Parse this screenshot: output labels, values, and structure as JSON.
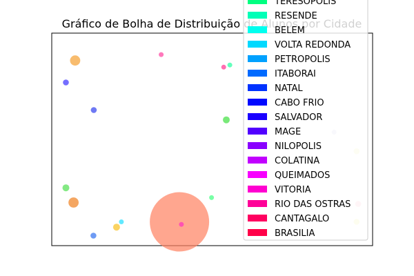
{
  "chart_data": {
    "type": "scatter",
    "title": "Gráfico de Bolha de Distribuição de Alunos por Cidade",
    "xlabel": "",
    "ylabel": "",
    "axes_ticks": "none",
    "grid": false,
    "legend_placement": "top-right",
    "legend": [
      {
        "name": "TERESOPOLIS",
        "color": "#00ff80"
      },
      {
        "name": "RESENDE",
        "color": "#00ffb7"
      },
      {
        "name": "BELEM",
        "color": "#00ffef"
      },
      {
        "name": "VOLTA REDONDA",
        "color": "#00d9ff"
      },
      {
        "name": "PETROPOLIS",
        "color": "#00a1ff"
      },
      {
        "name": "ITABORAI",
        "color": "#006aff"
      },
      {
        "name": "NATAL",
        "color": "#0032ff"
      },
      {
        "name": "CABO FRIO",
        "color": "#0008ff"
      },
      {
        "name": "SALVADOR",
        "color": "#1a00ff"
      },
      {
        "name": "MAGE",
        "color": "#5100ff"
      },
      {
        "name": "NILOPOLIS",
        "color": "#8900ff"
      },
      {
        "name": "COLATINA",
        "color": "#c100ff"
      },
      {
        "name": "QUEIMADOS",
        "color": "#f800ff"
      },
      {
        "name": "VITORIA",
        "color": "#ff00d0"
      },
      {
        "name": "RIO DAS OSTRAS",
        "color": "#ff0098"
      },
      {
        "name": "CANTAGALO",
        "color": "#ff0060"
      },
      {
        "name": "BRASILIA",
        "color": "#ff0048"
      }
    ],
    "points": [
      {
        "x": 0.398,
        "y": 0.112,
        "size": 300,
        "color": "#ff8060"
      },
      {
        "x": 0.073,
        "y": 0.871,
        "size": 9,
        "color": "#f5a030"
      },
      {
        "x": 0.068,
        "y": 0.203,
        "size": 9,
        "color": "#f08020"
      },
      {
        "x": 0.044,
        "y": 0.768,
        "size": 3,
        "color": "#3a30ff"
      },
      {
        "x": 0.131,
        "y": 0.638,
        "size": 3,
        "color": "#3040f0"
      },
      {
        "x": 0.341,
        "y": 0.899,
        "size": 2,
        "color": "#ff40a0"
      },
      {
        "x": 0.536,
        "y": 0.84,
        "size": 2,
        "color": "#ff3090"
      },
      {
        "x": 0.555,
        "y": 0.85,
        "size": 2,
        "color": "#20ffa0"
      },
      {
        "x": 0.544,
        "y": 0.592,
        "size": 4,
        "color": "#40e040"
      },
      {
        "x": 0.88,
        "y": 0.534,
        "size": 2,
        "color": "#c8c8e8"
      },
      {
        "x": 0.95,
        "y": 0.444,
        "size": 3,
        "color": "#f0f0a0"
      },
      {
        "x": 0.044,
        "y": 0.272,
        "size": 4,
        "color": "#50e050"
      },
      {
        "x": 0.498,
        "y": 0.226,
        "size": 2,
        "color": "#40ff80"
      },
      {
        "x": 0.217,
        "y": 0.112,
        "size": 2,
        "color": "#20e0ff"
      },
      {
        "x": 0.202,
        "y": 0.087,
        "size": 4,
        "color": "#f8c020"
      },
      {
        "x": 0.13,
        "y": 0.047,
        "size": 3,
        "color": "#3070f0"
      },
      {
        "x": 0.404,
        "y": 0.1,
        "size": 2,
        "color": "#ff30c0"
      },
      {
        "x": 0.95,
        "y": 0.112,
        "size": 3,
        "color": "#f0f080"
      },
      {
        "x": 0.955,
        "y": 0.196,
        "size": 3,
        "color": "#ffb0c0"
      }
    ]
  }
}
